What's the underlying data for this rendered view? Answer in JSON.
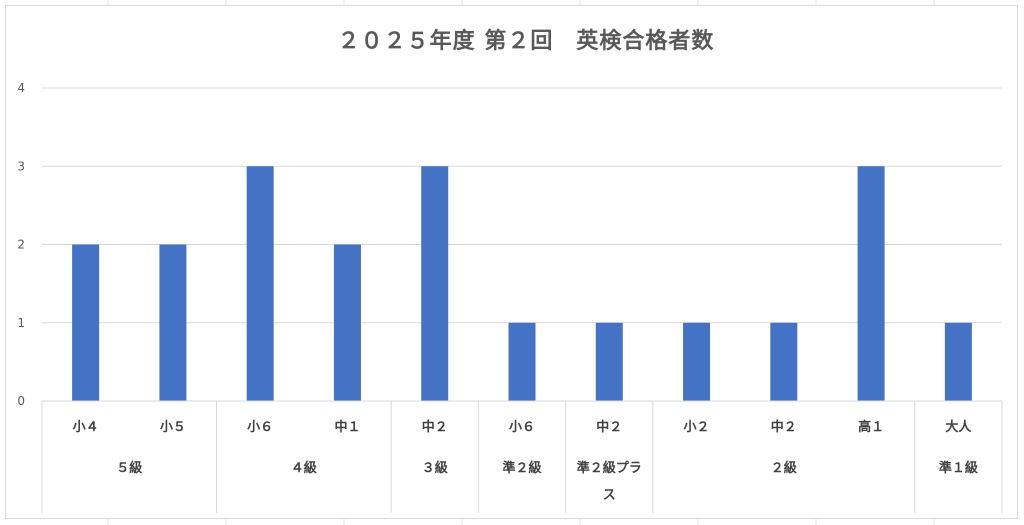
{
  "chart_data": {
    "type": "bar",
    "title": "２０２５年度 第２回　英検合格者数",
    "ylim": [
      0,
      4
    ],
    "yticks": [
      "0",
      "1",
      "2",
      "3",
      "4"
    ],
    "grid": true,
    "legend": "none",
    "bar_color": "#4472C4",
    "categories": [
      "小４",
      "小５",
      "小６",
      "中１",
      "中２",
      "小６",
      "中２",
      "小２",
      "中２",
      "高１",
      "大人"
    ],
    "values": [
      2,
      2,
      3,
      2,
      3,
      1,
      1,
      1,
      1,
      3,
      1
    ],
    "groups": [
      {
        "label": "５級",
        "start": 0,
        "end": 1
      },
      {
        "label": "４級",
        "start": 2,
        "end": 3
      },
      {
        "label": "３級",
        "start": 4,
        "end": 4
      },
      {
        "label": "準２級",
        "start": 5,
        "end": 5
      },
      {
        "label": "準２級プラス",
        "label_lines": [
          "準２級プラ",
          "ス"
        ],
        "start": 6,
        "end": 6
      },
      {
        "label": "２級",
        "start": 7,
        "end": 9
      },
      {
        "label": "準１級",
        "start": 10,
        "end": 10
      }
    ]
  }
}
